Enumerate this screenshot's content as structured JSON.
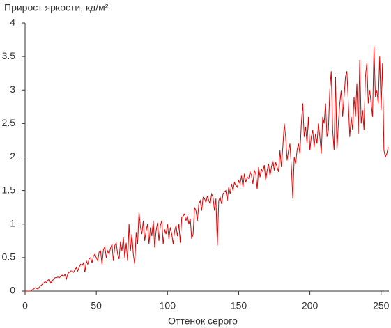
{
  "chart_data": {
    "type": "line",
    "title": "Прирост яркости, кд/м²",
    "x_label": "Оттенок серого",
    "xlim": [
      0,
      255
    ],
    "xticks": [
      0,
      50,
      100,
      150,
      200,
      250
    ],
    "ylim": [
      0,
      4
    ],
    "yticks": [
      0,
      0.5,
      1,
      1.5,
      2,
      2.5,
      3,
      3.5,
      4
    ],
    "grid": false,
    "x": [
      0,
      1,
      2,
      3,
      4,
      5,
      6,
      7,
      8,
      9,
      10,
      11,
      12,
      13,
      14,
      15,
      16,
      17,
      18,
      19,
      20,
      21,
      22,
      23,
      24,
      25,
      26,
      27,
      28,
      29,
      30,
      31,
      32,
      33,
      34,
      35,
      36,
      37,
      38,
      39,
      40,
      41,
      42,
      43,
      44,
      45,
      46,
      47,
      48,
      49,
      50,
      51,
      52,
      53,
      54,
      55,
      56,
      57,
      58,
      59,
      60,
      61,
      62,
      63,
      64,
      65,
      66,
      67,
      68,
      69,
      70,
      71,
      72,
      73,
      74,
      75,
      76,
      77,
      78,
      79,
      80,
      81,
      82,
      83,
      84,
      85,
      86,
      87,
      88,
      89,
      90,
      91,
      92,
      93,
      94,
      95,
      96,
      97,
      98,
      99,
      100,
      101,
      102,
      103,
      104,
      105,
      106,
      107,
      108,
      109,
      110,
      111,
      112,
      113,
      114,
      115,
      116,
      117,
      118,
      119,
      120,
      121,
      122,
      123,
      124,
      125,
      126,
      127,
      128,
      129,
      130,
      131,
      132,
      133,
      134,
      135,
      136,
      137,
      138,
      139,
      140,
      141,
      142,
      143,
      144,
      145,
      146,
      147,
      148,
      149,
      150,
      151,
      152,
      153,
      154,
      155,
      156,
      157,
      158,
      159,
      160,
      161,
      162,
      163,
      164,
      165,
      166,
      167,
      168,
      169,
      170,
      171,
      172,
      173,
      174,
      175,
      176,
      177,
      178,
      179,
      180,
      181,
      182,
      183,
      184,
      185,
      186,
      187,
      188,
      189,
      190,
      191,
      192,
      193,
      194,
      195,
      196,
      197,
      198,
      199,
      200,
      201,
      202,
      203,
      204,
      205,
      206,
      207,
      208,
      209,
      210,
      211,
      212,
      213,
      214,
      215,
      216,
      217,
      218,
      219,
      220,
      221,
      222,
      223,
      224,
      225,
      226,
      227,
      228,
      229,
      230,
      231,
      232,
      233,
      234,
      235,
      236,
      237,
      238,
      239,
      240,
      241,
      242,
      243,
      244,
      245,
      246,
      247,
      248,
      249,
      250,
      251,
      252,
      253,
      254,
      255
    ],
    "series": [
      {
        "color": "#e00000",
        "values": [
          0,
          0,
          0,
          0,
          0,
          0.02,
          0.03,
          0.05,
          0.04,
          0.03,
          0.06,
          0.08,
          0.1,
          0.12,
          0.14,
          0.13,
          0.16,
          0.18,
          0.12,
          0.15,
          0.18,
          0.2,
          0.2,
          0.21,
          0.2,
          0.22,
          0.24,
          0.22,
          0.25,
          0.18,
          0.26,
          0.28,
          0.3,
          0.3,
          0.28,
          0.32,
          0.35,
          0.3,
          0.36,
          0.4,
          0.38,
          0.42,
          0.28,
          0.45,
          0.4,
          0.48,
          0.5,
          0.42,
          0.52,
          0.55,
          0.5,
          0.45,
          0.58,
          0.6,
          0.4,
          0.62,
          0.66,
          0.5,
          0.6,
          0.55,
          0.64,
          0.7,
          0.45,
          0.68,
          0.72,
          0.55,
          0.48,
          0.74,
          0.6,
          0.8,
          0.5,
          0.72,
          0.45,
          1.0,
          0.6,
          0.85,
          0.55,
          0.4,
          0.88,
          0.7,
          1.18,
          0.95,
          0.85,
          1.05,
          0.75,
          0.9,
          1.0,
          0.7,
          0.95,
          0.82,
          1.05,
          0.65,
          0.9,
          1.02,
          0.75,
          0.98,
          1.05,
          0.7,
          0.92,
          0.85,
          1.0,
          0.78,
          0.95,
          0.85,
          0.7,
          0.9,
          0.98,
          0.82,
          1.0,
          0.72,
          1.1,
          1.12,
          1.15,
          1.05,
          1.12,
          1.0,
          1.08,
          0.78,
          0.85,
          1.25,
          1.2,
          1.05,
          1.3,
          1.35,
          1.2,
          1.4,
          1.38,
          1.32,
          1.42,
          1.35,
          1.3,
          1.45,
          1.4,
          1.2,
          1.38,
          0.68,
          1.35,
          1.4,
          1.3,
          1.45,
          1.48,
          1.5,
          1.35,
          1.55,
          1.45,
          1.6,
          1.5,
          1.62,
          1.58,
          1.55,
          1.65,
          1.6,
          1.72,
          1.55,
          1.75,
          1.62,
          1.7,
          1.68,
          1.78,
          1.72,
          1.6,
          1.8,
          1.75,
          1.52,
          1.85,
          1.7,
          1.82,
          1.78,
          1.88,
          1.65,
          1.8,
          1.9,
          1.72,
          1.85,
          1.95,
          1.8,
          1.92,
          1.85,
          1.78,
          2.1,
          1.85,
          2.15,
          2.5,
          2.3,
          1.95,
          2.1,
          2.2,
          1.85,
          1.38,
          2.0,
          1.9,
          2.1,
          2.2,
          2.05,
          2.5,
          2.8,
          2.3,
          2.45,
          2.2,
          2.6,
          2.1,
          2.3,
          2.4,
          2.15,
          2.35,
          2.2,
          2.5,
          2.3,
          2.05,
          2.6,
          2.5,
          2.8,
          2.3,
          2.4,
          3.0,
          3.28,
          2.4,
          2.1,
          3.2,
          2.1,
          2.5,
          2.8,
          3.0,
          2.6,
          2.9,
          3.2,
          3.28,
          2.8,
          2.3,
          2.6,
          2.4,
          2.9,
          2.6,
          3.1,
          2.35,
          3.45,
          2.5,
          2.7,
          2.4,
          3.2,
          3.4,
          2.8,
          3.0,
          2.8,
          2.6,
          3.65,
          2.9,
          3.0,
          2.8,
          3.5,
          2.7,
          3.4,
          2.1,
          2.0,
          2.05,
          2.15
        ]
      }
    ]
  }
}
